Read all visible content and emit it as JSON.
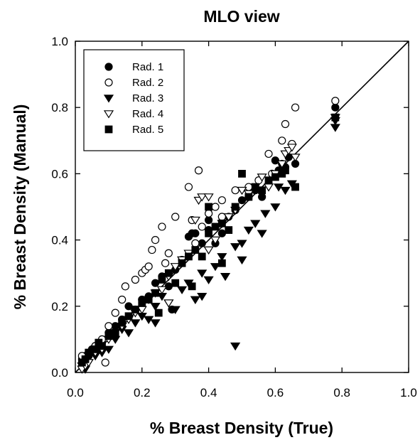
{
  "chart_data": {
    "type": "scatter",
    "title": "MLO view",
    "xlabel": "% Breast Density (True)",
    "ylabel": "% Breast Density (Manual)",
    "xlim": [
      0.0,
      1.0
    ],
    "ylim": [
      0.0,
      1.0
    ],
    "xticks": [
      "0.0",
      "0.2",
      "0.4",
      "0.6",
      "0.8",
      "1.0"
    ],
    "yticks": [
      "0.0",
      "0.2",
      "0.4",
      "0.6",
      "0.8",
      "1.0"
    ],
    "grid": false,
    "legend_position": "top-left",
    "identity_line": true,
    "series": [
      {
        "name": "Rad. 1",
        "marker": "filled-circle",
        "color": "#000000",
        "points": [
          [
            0.02,
            0.04
          ],
          [
            0.03,
            0.05
          ],
          [
            0.04,
            0.05
          ],
          [
            0.05,
            0.07
          ],
          [
            0.06,
            0.08
          ],
          [
            0.08,
            0.09
          ],
          [
            0.1,
            0.12
          ],
          [
            0.12,
            0.14
          ],
          [
            0.14,
            0.16
          ],
          [
            0.16,
            0.2
          ],
          [
            0.18,
            0.19
          ],
          [
            0.2,
            0.22
          ],
          [
            0.22,
            0.23
          ],
          [
            0.24,
            0.27
          ],
          [
            0.26,
            0.29
          ],
          [
            0.28,
            0.26
          ],
          [
            0.3,
            0.31
          ],
          [
            0.34,
            0.41
          ],
          [
            0.35,
            0.42
          ],
          [
            0.36,
            0.42
          ],
          [
            0.38,
            0.39
          ],
          [
            0.4,
            0.43
          ],
          [
            0.4,
            0.46
          ],
          [
            0.42,
            0.39
          ],
          [
            0.44,
            0.42
          ],
          [
            0.46,
            0.47
          ],
          [
            0.48,
            0.49
          ],
          [
            0.5,
            0.52
          ],
          [
            0.52,
            0.53
          ],
          [
            0.54,
            0.55
          ],
          [
            0.56,
            0.53
          ],
          [
            0.58,
            0.57
          ],
          [
            0.6,
            0.64
          ],
          [
            0.61,
            0.61
          ],
          [
            0.62,
            0.63
          ],
          [
            0.63,
            0.62
          ],
          [
            0.64,
            0.65
          ],
          [
            0.66,
            0.63
          ],
          [
            0.78,
            0.8
          ],
          [
            0.29,
            0.19
          ]
        ]
      },
      {
        "name": "Rad. 2",
        "marker": "open-circle",
        "color": "#000000",
        "points": [
          [
            0.02,
            0.05
          ],
          [
            0.03,
            0.04
          ],
          [
            0.04,
            0.06
          ],
          [
            0.06,
            0.08
          ],
          [
            0.08,
            0.1
          ],
          [
            0.09,
            0.03
          ],
          [
            0.1,
            0.14
          ],
          [
            0.12,
            0.18
          ],
          [
            0.14,
            0.22
          ],
          [
            0.15,
            0.26
          ],
          [
            0.18,
            0.28
          ],
          [
            0.2,
            0.3
          ],
          [
            0.21,
            0.31
          ],
          [
            0.22,
            0.32
          ],
          [
            0.23,
            0.37
          ],
          [
            0.24,
            0.4
          ],
          [
            0.26,
            0.44
          ],
          [
            0.27,
            0.33
          ],
          [
            0.28,
            0.36
          ],
          [
            0.3,
            0.47
          ],
          [
            0.32,
            0.34
          ],
          [
            0.34,
            0.56
          ],
          [
            0.35,
            0.46
          ],
          [
            0.37,
            0.61
          ],
          [
            0.38,
            0.44
          ],
          [
            0.4,
            0.48
          ],
          [
            0.42,
            0.5
          ],
          [
            0.44,
            0.52
          ],
          [
            0.48,
            0.55
          ],
          [
            0.52,
            0.56
          ],
          [
            0.55,
            0.58
          ],
          [
            0.58,
            0.66
          ],
          [
            0.59,
            0.6
          ],
          [
            0.62,
            0.7
          ],
          [
            0.63,
            0.75
          ],
          [
            0.65,
            0.69
          ],
          [
            0.66,
            0.8
          ],
          [
            0.78,
            0.82
          ],
          [
            0.44,
            0.47
          ],
          [
            0.36,
            0.39
          ]
        ]
      },
      {
        "name": "Rad. 3",
        "marker": "filled-triangle-down",
        "color": "#000000",
        "points": [
          [
            0.02,
            0.02
          ],
          [
            0.03,
            0.01
          ],
          [
            0.04,
            0.03
          ],
          [
            0.06,
            0.05
          ],
          [
            0.08,
            0.06
          ],
          [
            0.1,
            0.07
          ],
          [
            0.12,
            0.1
          ],
          [
            0.14,
            0.13
          ],
          [
            0.16,
            0.12
          ],
          [
            0.18,
            0.15
          ],
          [
            0.2,
            0.17
          ],
          [
            0.22,
            0.16
          ],
          [
            0.24,
            0.2
          ],
          [
            0.24,
            0.15
          ],
          [
            0.26,
            0.23
          ],
          [
            0.28,
            0.21
          ],
          [
            0.3,
            0.19
          ],
          [
            0.32,
            0.25
          ],
          [
            0.34,
            0.27
          ],
          [
            0.36,
            0.22
          ],
          [
            0.38,
            0.3
          ],
          [
            0.4,
            0.28
          ],
          [
            0.42,
            0.32
          ],
          [
            0.44,
            0.35
          ],
          [
            0.45,
            0.29
          ],
          [
            0.48,
            0.38
          ],
          [
            0.48,
            0.08
          ],
          [
            0.5,
            0.39
          ],
          [
            0.52,
            0.43
          ],
          [
            0.54,
            0.45
          ],
          [
            0.56,
            0.42
          ],
          [
            0.57,
            0.48
          ],
          [
            0.6,
            0.5
          ],
          [
            0.61,
            0.56
          ],
          [
            0.63,
            0.55
          ],
          [
            0.65,
            0.57
          ],
          [
            0.78,
            0.74
          ],
          [
            0.78,
            0.76
          ],
          [
            0.38,
            0.23
          ],
          [
            0.5,
            0.34
          ]
        ]
      },
      {
        "name": "Rad. 4",
        "marker": "open-triangle-down",
        "color": "#000000",
        "points": [
          [
            0.02,
            0.01
          ],
          [
            0.03,
            0.02
          ],
          [
            0.04,
            0.03
          ],
          [
            0.06,
            0.06
          ],
          [
            0.08,
            0.07
          ],
          [
            0.1,
            0.1
          ],
          [
            0.12,
            0.12
          ],
          [
            0.14,
            0.14
          ],
          [
            0.16,
            0.16
          ],
          [
            0.18,
            0.18
          ],
          [
            0.2,
            0.19
          ],
          [
            0.22,
            0.22
          ],
          [
            0.24,
            0.24
          ],
          [
            0.26,
            0.25
          ],
          [
            0.28,
            0.29
          ],
          [
            0.3,
            0.32
          ],
          [
            0.32,
            0.34
          ],
          [
            0.34,
            0.36
          ],
          [
            0.36,
            0.46
          ],
          [
            0.37,
            0.52
          ],
          [
            0.38,
            0.53
          ],
          [
            0.4,
            0.53
          ],
          [
            0.4,
            0.37
          ],
          [
            0.42,
            0.4
          ],
          [
            0.44,
            0.45
          ],
          [
            0.46,
            0.47
          ],
          [
            0.48,
            0.49
          ],
          [
            0.5,
            0.55
          ],
          [
            0.52,
            0.54
          ],
          [
            0.54,
            0.56
          ],
          [
            0.56,
            0.59
          ],
          [
            0.58,
            0.56
          ],
          [
            0.6,
            0.6
          ],
          [
            0.62,
            0.63
          ],
          [
            0.63,
            0.66
          ],
          [
            0.64,
            0.67
          ],
          [
            0.65,
            0.68
          ],
          [
            0.66,
            0.65
          ],
          [
            0.78,
            0.77
          ],
          [
            0.28,
            0.21
          ]
        ]
      },
      {
        "name": "Rad. 5",
        "marker": "filled-square",
        "color": "#000000",
        "points": [
          [
            0.02,
            0.03
          ],
          [
            0.03,
            0.04
          ],
          [
            0.04,
            0.06
          ],
          [
            0.06,
            0.07
          ],
          [
            0.07,
            0.09
          ],
          [
            0.08,
            0.08
          ],
          [
            0.1,
            0.11
          ],
          [
            0.12,
            0.12
          ],
          [
            0.14,
            0.15
          ],
          [
            0.16,
            0.17
          ],
          [
            0.18,
            0.19
          ],
          [
            0.2,
            0.21
          ],
          [
            0.22,
            0.22
          ],
          [
            0.24,
            0.24
          ],
          [
            0.25,
            0.18
          ],
          [
            0.26,
            0.28
          ],
          [
            0.28,
            0.3
          ],
          [
            0.3,
            0.27
          ],
          [
            0.32,
            0.33
          ],
          [
            0.34,
            0.35
          ],
          [
            0.35,
            0.26
          ],
          [
            0.36,
            0.37
          ],
          [
            0.38,
            0.35
          ],
          [
            0.4,
            0.42
          ],
          [
            0.42,
            0.44
          ],
          [
            0.44,
            0.45
          ],
          [
            0.46,
            0.43
          ],
          [
            0.48,
            0.5
          ],
          [
            0.5,
            0.6
          ],
          [
            0.52,
            0.53
          ],
          [
            0.54,
            0.56
          ],
          [
            0.56,
            0.55
          ],
          [
            0.58,
            0.58
          ],
          [
            0.6,
            0.59
          ],
          [
            0.62,
            0.6
          ],
          [
            0.63,
            0.61
          ],
          [
            0.66,
            0.56
          ],
          [
            0.78,
            0.77
          ],
          [
            0.4,
            0.5
          ],
          [
            0.44,
            0.33
          ]
        ]
      }
    ]
  }
}
